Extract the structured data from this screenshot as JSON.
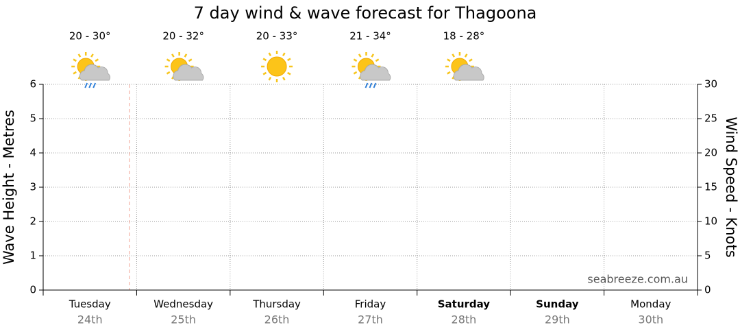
{
  "chart_data": {
    "type": "line",
    "title": "7 day wind & wave forecast for Thagoona",
    "categories": [
      "Tuesday",
      "Wednesday",
      "Thursday",
      "Friday",
      "Saturday",
      "Sunday",
      "Monday"
    ],
    "dates": [
      "24th",
      "25th",
      "26th",
      "27th",
      "28th",
      "29th",
      "30th"
    ],
    "forecast": [
      "20 - 30°",
      "20 - 32°",
      "20 - 33°",
      "21 - 34°",
      "18 - 28°"
    ],
    "ylabel": "Wave Height - Metres",
    "ylim": [
      0,
      6
    ],
    "yticks": [
      0,
      1,
      2,
      3,
      4,
      5,
      6
    ],
    "y2label": "Wind Speed - Knots",
    "y2lim": [
      0,
      30
    ],
    "y2ticks": [
      0,
      5,
      10,
      15,
      20,
      25,
      30
    ],
    "grid": true,
    "watermark": "seabreeze.com.au"
  }
}
